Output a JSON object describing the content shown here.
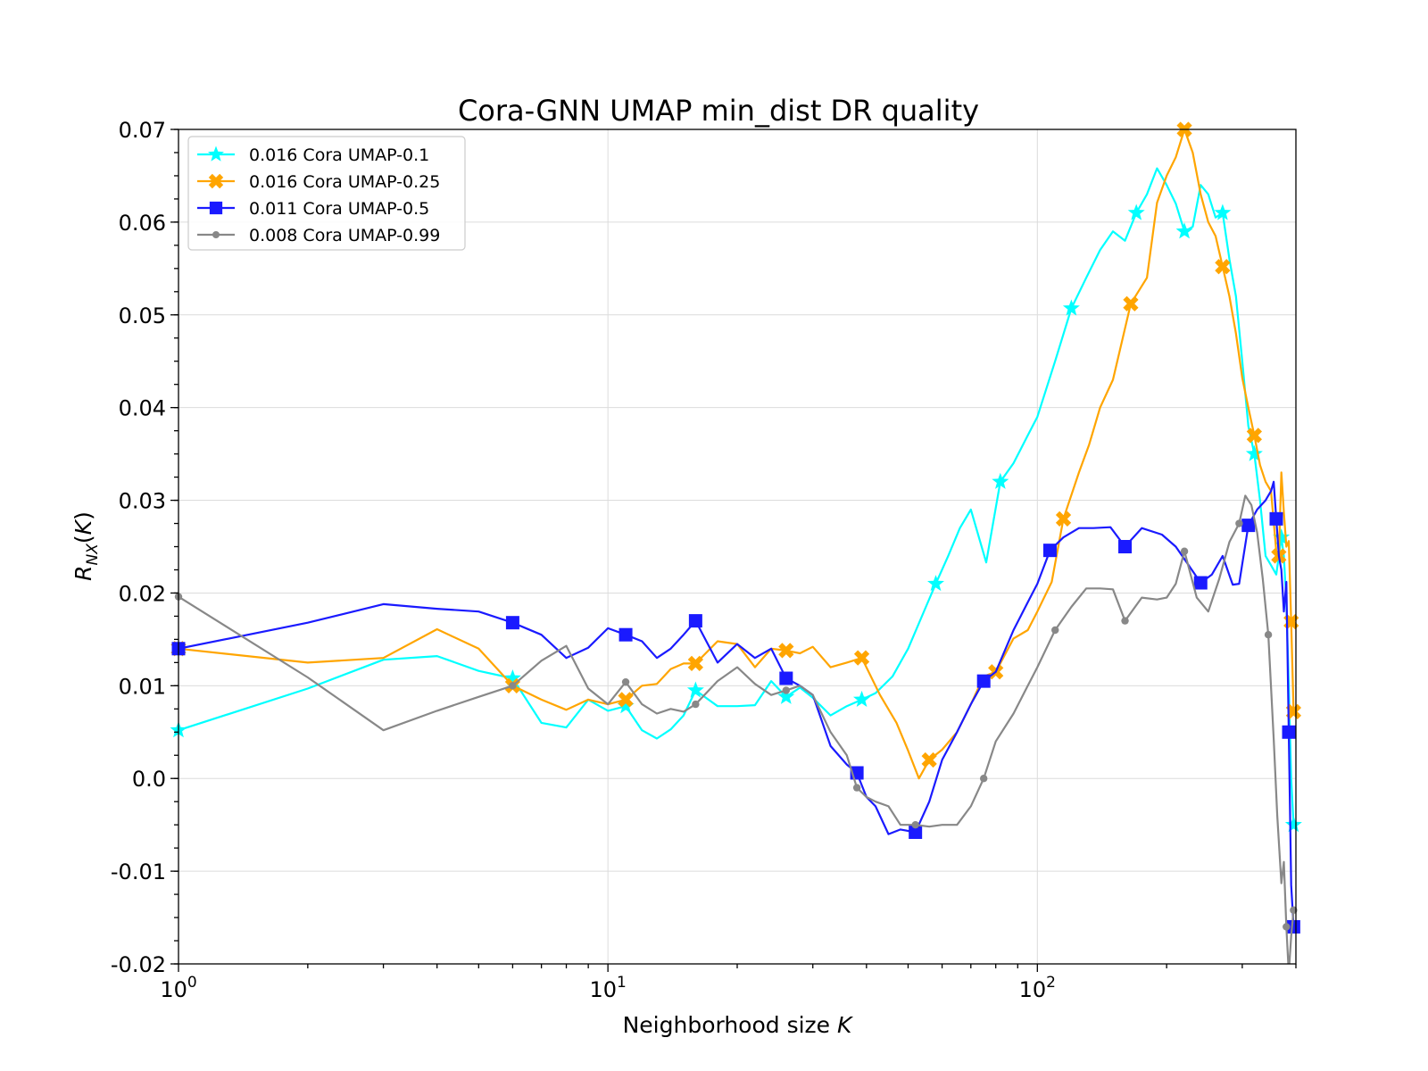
{
  "chart_data": {
    "type": "line",
    "title": "Cora-GNN UMAP min_dist DR quality",
    "xlabel": "Neighborhood size K",
    "ylabel": "R_NX(K)",
    "xscale": "log",
    "xlim": [
      1,
      400
    ],
    "ylim": [
      -0.02,
      0.07
    ],
    "grid": true,
    "legend": "top-left",
    "xticks": [
      {
        "value": 1,
        "base": "10",
        "exp": "0"
      },
      {
        "value": 10,
        "base": "10",
        "exp": "1"
      },
      {
        "value": 100,
        "base": "10",
        "exp": "2"
      }
    ],
    "yticks": [
      {
        "value": -0.02,
        "label": "-0.02"
      },
      {
        "value": -0.01,
        "label": "-0.01"
      },
      {
        "value": 0.0,
        "label": "0.0"
      },
      {
        "value": 0.01,
        "label": "0.01"
      },
      {
        "value": 0.02,
        "label": "0.02"
      },
      {
        "value": 0.03,
        "label": "0.03"
      },
      {
        "value": 0.04,
        "label": "0.04"
      },
      {
        "value": 0.05,
        "label": "0.05"
      },
      {
        "value": 0.06,
        "label": "0.06"
      },
      {
        "value": 0.07,
        "label": "0.07"
      }
    ],
    "series": [
      {
        "name": "0.016 Cora UMAP-0.1",
        "color": "#00ffff",
        "marker": "star",
        "x": [
          1,
          2,
          3,
          4,
          5,
          6,
          7,
          8,
          9,
          10,
          11,
          12,
          13,
          14,
          15,
          16,
          18,
          20,
          22,
          24,
          26,
          28,
          30,
          33,
          36,
          39,
          42,
          46,
          50,
          55,
          58,
          62,
          66,
          70,
          76,
          82,
          88,
          95,
          100,
          110,
          120,
          130,
          140,
          150,
          160,
          170,
          180,
          190,
          200,
          210,
          220,
          230,
          240,
          250,
          260,
          270,
          280,
          290,
          300,
          310,
          320,
          330,
          340,
          350,
          360,
          370,
          375,
          380,
          385,
          390,
          395
        ],
        "y": [
          0.0052,
          0.0097,
          0.0128,
          0.0132,
          0.0116,
          0.0108,
          0.006,
          0.0055,
          0.0085,
          0.0073,
          0.0078,
          0.0052,
          0.0043,
          0.0053,
          0.0068,
          0.0095,
          0.0078,
          0.0078,
          0.0079,
          0.0105,
          0.0088,
          0.0098,
          0.0087,
          0.0068,
          0.0078,
          0.0085,
          0.0092,
          0.011,
          0.014,
          0.0185,
          0.021,
          0.024,
          0.027,
          0.029,
          0.0233,
          0.032,
          0.034,
          0.037,
          0.039,
          0.045,
          0.0507,
          0.054,
          0.057,
          0.059,
          0.058,
          0.061,
          0.063,
          0.0658,
          0.064,
          0.062,
          0.059,
          0.0595,
          0.064,
          0.063,
          0.0605,
          0.061,
          0.056,
          0.052,
          0.045,
          0.038,
          0.035,
          0.03,
          0.024,
          0.023,
          0.022,
          0.026,
          0.024,
          0.019,
          0.01,
          0.0,
          -0.005
        ]
      },
      {
        "name": "0.016 Cora UMAP-0.25",
        "color": "#ffa500",
        "marker": "x",
        "x": [
          1,
          2,
          3,
          4,
          5,
          6,
          7,
          8,
          9,
          10,
          11,
          12,
          13,
          14,
          15,
          16,
          18,
          20,
          22,
          24,
          26,
          28,
          30,
          33,
          36,
          39,
          43,
          47,
          50,
          53,
          56,
          60,
          65,
          70,
          75,
          80,
          88,
          95,
          100,
          108,
          115,
          125,
          132,
          140,
          150,
          165,
          180,
          190,
          200,
          210,
          220,
          230,
          240,
          250,
          260,
          270,
          280,
          290,
          300,
          310,
          320,
          330,
          340,
          350,
          360,
          365,
          370,
          375,
          380,
          385,
          390,
          395
        ],
        "y": [
          0.014,
          0.0125,
          0.013,
          0.0161,
          0.014,
          0.01,
          0.0085,
          0.0074,
          0.0085,
          0.008,
          0.0085,
          0.01,
          0.0102,
          0.0118,
          0.0124,
          0.0124,
          0.0148,
          0.0145,
          0.012,
          0.014,
          0.0138,
          0.0135,
          0.0142,
          0.012,
          0.0125,
          0.013,
          0.009,
          0.006,
          0.003,
          0.0,
          0.002,
          0.0031,
          0.005,
          0.008,
          0.011,
          0.0115,
          0.0151,
          0.016,
          0.018,
          0.0212,
          0.028,
          0.033,
          0.036,
          0.04,
          0.043,
          0.0512,
          0.054,
          0.0621,
          0.065,
          0.067,
          0.07,
          0.0675,
          0.063,
          0.06,
          0.0585,
          0.0552,
          0.052,
          0.048,
          0.0432,
          0.04,
          0.037,
          0.0338,
          0.032,
          0.031,
          0.0245,
          0.024,
          0.033,
          0.0287,
          0.025,
          0.0256,
          0.0169,
          0.0072
        ]
      },
      {
        "name": "0.011 Cora UMAP-0.5",
        "color": "#1a1aff",
        "marker": "square",
        "x": [
          1,
          2,
          3,
          4,
          5,
          6,
          7,
          8,
          9,
          10,
          11,
          12,
          13,
          14,
          15,
          16,
          18,
          20,
          22,
          24,
          26,
          28,
          30,
          33,
          36,
          38,
          40,
          42,
          45,
          48,
          52,
          56,
          60,
          65,
          70,
          75,
          80,
          88,
          95,
          100,
          107,
          115,
          125,
          135,
          148,
          160,
          175,
          195,
          210,
          225,
          240,
          255,
          270,
          285,
          295,
          310,
          325,
          340,
          350,
          355,
          360,
          365,
          370,
          375,
          380,
          385,
          390,
          395
        ],
        "y": [
          0.014,
          0.0168,
          0.0188,
          0.0183,
          0.018,
          0.0168,
          0.0155,
          0.013,
          0.0141,
          0.0162,
          0.0155,
          0.0148,
          0.013,
          0.014,
          0.0155,
          0.017,
          0.0125,
          0.0145,
          0.013,
          0.014,
          0.0108,
          0.01,
          0.009,
          0.0035,
          0.0015,
          0.0006,
          -0.002,
          -0.003,
          -0.006,
          -0.0055,
          -0.0058,
          -0.0025,
          0.002,
          0.005,
          0.008,
          0.0105,
          0.0115,
          0.016,
          0.019,
          0.021,
          0.0246,
          0.026,
          0.027,
          0.027,
          0.0271,
          0.025,
          0.027,
          0.0263,
          0.025,
          0.023,
          0.0211,
          0.022,
          0.024,
          0.0209,
          0.021,
          0.0273,
          0.029,
          0.03,
          0.031,
          0.032,
          0.028,
          0.024,
          0.0225,
          0.018,
          0.0212,
          0.005,
          -0.0115,
          -0.016
        ]
      },
      {
        "name": "0.008 Cora UMAP-0.99",
        "color": "#888888",
        "marker": "dot",
        "x": [
          1,
          2,
          3,
          4,
          5,
          6,
          7,
          8,
          9,
          10,
          11,
          12,
          13,
          14,
          15,
          16,
          18,
          20,
          22,
          24,
          26,
          28,
          30,
          33,
          36,
          38,
          40,
          42,
          45,
          48,
          52,
          56,
          60,
          65,
          70,
          75,
          80,
          88,
          95,
          100,
          110,
          120,
          130,
          140,
          150,
          160,
          175,
          190,
          200,
          210,
          220,
          235,
          250,
          265,
          280,
          295,
          305,
          315,
          325,
          335,
          345,
          355,
          362,
          370,
          375,
          380,
          385,
          390,
          395
        ],
        "y": [
          0.0196,
          0.0109,
          0.0052,
          0.0073,
          0.0088,
          0.01,
          0.0127,
          0.0143,
          0.0097,
          0.008,
          0.0104,
          0.008,
          0.007,
          0.0075,
          0.0072,
          0.008,
          0.0105,
          0.012,
          0.0102,
          0.009,
          0.0095,
          0.01,
          0.009,
          0.005,
          0.0025,
          -0.001,
          -0.002,
          -0.0025,
          -0.003,
          -0.005,
          -0.005,
          -0.0052,
          -0.005,
          -0.005,
          -0.003,
          0.0,
          0.004,
          0.007,
          0.01,
          0.012,
          0.016,
          0.0185,
          0.0205,
          0.0205,
          0.0204,
          0.017,
          0.0195,
          0.0193,
          0.0195,
          0.021,
          0.0245,
          0.0195,
          0.018,
          0.0215,
          0.0255,
          0.0275,
          0.0305,
          0.0295,
          0.0265,
          0.0215,
          0.0155,
          0.0043,
          -0.004,
          -0.0113,
          -0.009,
          -0.016,
          -0.021,
          -0.017,
          -0.0142
        ]
      }
    ]
  }
}
